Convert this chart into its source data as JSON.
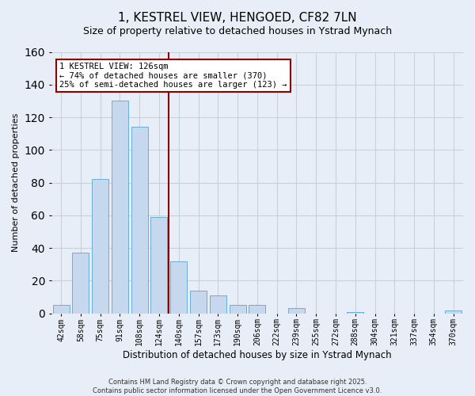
{
  "title": "1, KESTREL VIEW, HENGOED, CF82 7LN",
  "subtitle": "Size of property relative to detached houses in Ystrad Mynach",
  "xlabel": "Distribution of detached houses by size in Ystrad Mynach",
  "ylabel": "Number of detached properties",
  "categories": [
    "42sqm",
    "58sqm",
    "75sqm",
    "91sqm",
    "108sqm",
    "124sqm",
    "140sqm",
    "157sqm",
    "173sqm",
    "190sqm",
    "206sqm",
    "222sqm",
    "239sqm",
    "255sqm",
    "272sqm",
    "288sqm",
    "304sqm",
    "321sqm",
    "337sqm",
    "354sqm",
    "370sqm"
  ],
  "values": [
    5,
    37,
    82,
    130,
    114,
    59,
    32,
    14,
    11,
    5,
    5,
    0,
    3,
    0,
    0,
    1,
    0,
    0,
    0,
    0,
    2
  ],
  "bar_color": "#c5d8ed",
  "bar_edge_color": "#6aaed6",
  "vline_x_bar_index": 5,
  "vline_color": "#8b0000",
  "annotation_line1": "1 KESTREL VIEW: 126sqm",
  "annotation_line2": "← 74% of detached houses are smaller (370)",
  "annotation_line3": "25% of semi-detached houses are larger (123) →",
  "ylim": [
    0,
    160
  ],
  "yticks": [
    0,
    20,
    40,
    60,
    80,
    100,
    120,
    140,
    160
  ],
  "footer_line1": "Contains HM Land Registry data © Crown copyright and database right 2025.",
  "footer_line2": "Contains public sector information licensed under the Open Government Licence v3.0.",
  "background_color": "#e8eef8",
  "plot_bg_color": "#e8eef8",
  "grid_color": "#c8d0dc",
  "title_fontsize": 11,
  "subtitle_fontsize": 9
}
